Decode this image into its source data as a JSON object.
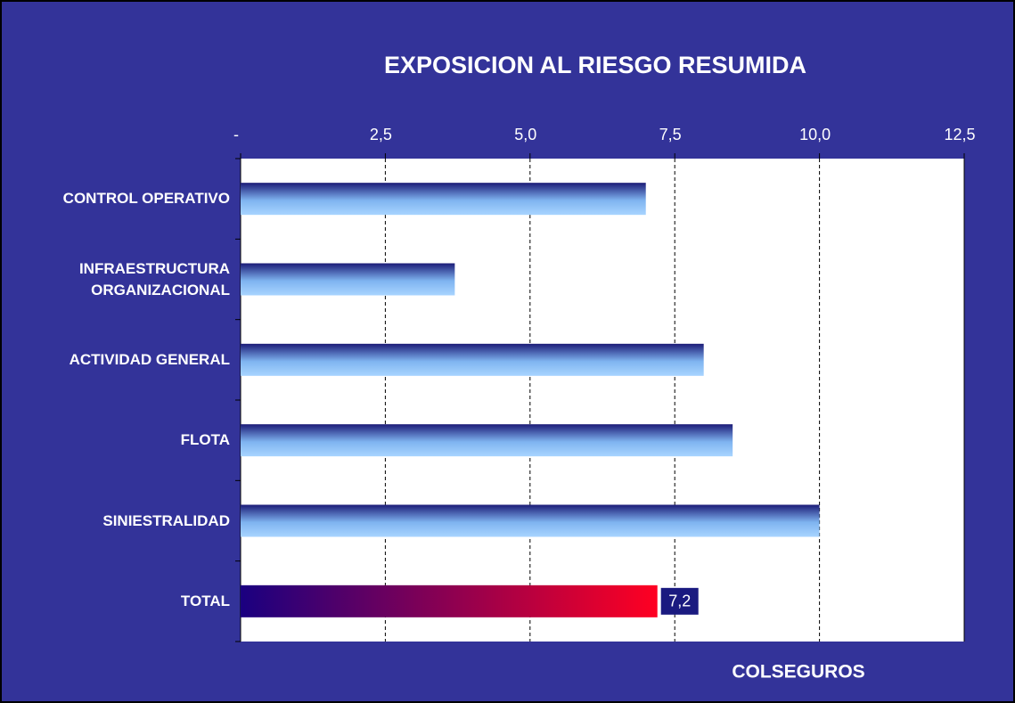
{
  "chart_data": {
    "type": "bar",
    "orientation": "horizontal",
    "title": "EXPOSICION AL RIESGO RESUMIDA",
    "annotation": "COLSEGUROS",
    "categories": [
      "CONTROL OPERATIVO",
      "INFRAESTRUCTURA ORGANIZACIONAL",
      "ACTIVIDAD GENERAL",
      "FLOTA",
      "SINIESTRALIDAD",
      "TOTAL"
    ],
    "values": [
      7.0,
      3.7,
      8.0,
      8.5,
      10.0,
      7.2
    ],
    "value_labels": [
      null,
      null,
      null,
      null,
      null,
      "7,2"
    ],
    "xlim": [
      0,
      12.5
    ],
    "xticks": [
      {
        "value": 0,
        "label": "-"
      },
      {
        "value": 2.5,
        "label": "2,5"
      },
      {
        "value": 5,
        "label": "5,0"
      },
      {
        "value": 7.5,
        "label": "7,5"
      },
      {
        "value": 10,
        "label": "10,0"
      },
      {
        "value": 12.5,
        "label": "12,5"
      }
    ],
    "grid": true
  }
}
